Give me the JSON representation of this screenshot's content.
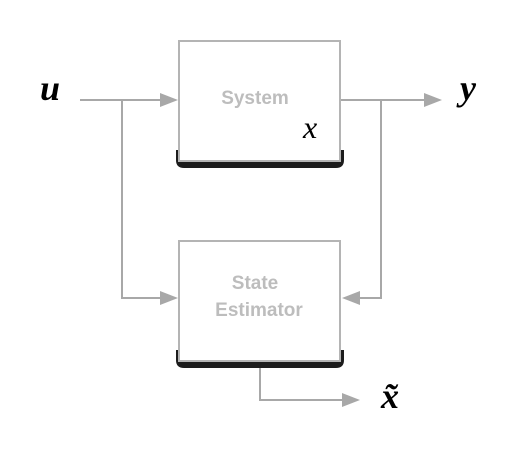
{
  "signals": {
    "input": "u",
    "output": "y",
    "estimate": "x̃"
  },
  "blocks": {
    "system": {
      "label": "System",
      "state": "x"
    },
    "estimator": {
      "line1": "State",
      "line2": "Estimator"
    }
  },
  "colors": {
    "wire": "#a8a8a8",
    "block_border": "#b4b4b4",
    "block_shadow": "#1c1c1c",
    "block_text": "#bdbdbd",
    "signal_text": "#000000"
  }
}
